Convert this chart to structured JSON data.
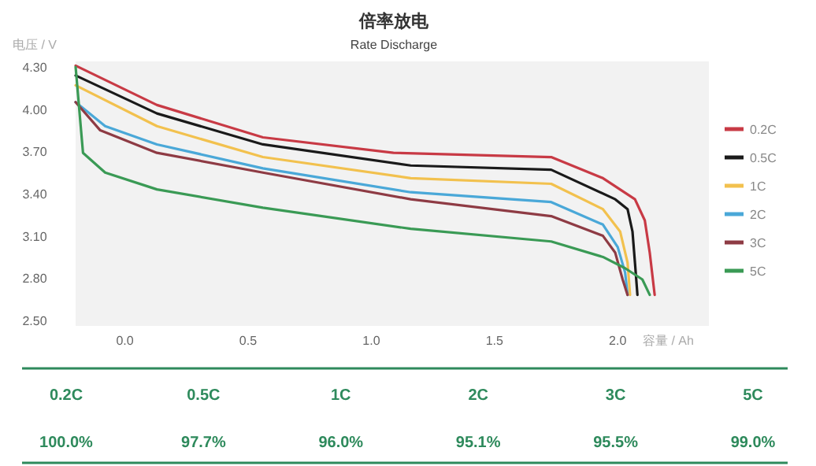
{
  "chart_data": [
    {
      "type": "line",
      "title": "倍率放电",
      "subtitle": "Rate Discharge",
      "xlabel": "容量 / Ah",
      "ylabel": "电压 / V",
      "xlim": [
        -0.2,
        2.37
      ],
      "ylim": [
        2.46,
        4.34
      ],
      "xticks": [
        {
          "value": 0,
          "label": "0.0"
        },
        0.5,
        {
          "value": 1,
          "label": "1.0"
        },
        1.5,
        {
          "value": 2,
          "label": "2.0"
        }
      ],
      "yticks": [
        {
          "value": 2.5,
          "label": "2.50"
        },
        {
          "value": 2.8,
          "label": "2.80"
        },
        {
          "value": 3.1,
          "label": "3.10"
        },
        {
          "value": 3.4,
          "label": "3.40"
        },
        {
          "value": 3.7,
          "label": "3.70"
        },
        {
          "value": 4.0,
          "label": "4.00"
        },
        {
          "value": 4.3,
          "label": "4.30"
        }
      ],
      "grid": false,
      "legend": "right",
      "line_style": "solid",
      "series": [
        {
          "name": "0.2C",
          "color": "#c83a45",
          "x": [
            -0.2,
            0.13,
            0.56,
            1.09,
            1.73,
            1.94,
            2.07,
            2.11,
            2.13,
            2.15
          ],
          "values": [
            4.31,
            4.03,
            3.8,
            3.69,
            3.66,
            3.51,
            3.36,
            3.21,
            2.98,
            2.68
          ]
        },
        {
          "name": "0.5C",
          "color": "#1a1a1a",
          "x": [
            -0.2,
            0.13,
            0.56,
            1.16,
            1.73,
            1.99,
            2.04,
            2.06,
            2.07,
            2.08
          ],
          "values": [
            4.24,
            3.97,
            3.75,
            3.6,
            3.57,
            3.36,
            3.29,
            3.13,
            2.91,
            2.68
          ]
        },
        {
          "name": "1C",
          "color": "#f2c14e",
          "x": [
            -0.2,
            0.13,
            0.56,
            1.16,
            1.73,
            1.94,
            2.01,
            2.04,
            2.05
          ],
          "values": [
            4.17,
            3.88,
            3.66,
            3.51,
            3.47,
            3.29,
            3.13,
            2.91,
            2.68
          ]
        },
        {
          "name": "2C",
          "color": "#4aa8d8",
          "x": [
            -0.2,
            -0.08,
            0.13,
            0.56,
            1.16,
            1.73,
            1.94,
            2.0,
            2.03,
            2.04
          ],
          "values": [
            4.05,
            3.88,
            3.75,
            3.58,
            3.41,
            3.34,
            3.18,
            3.02,
            2.84,
            2.68
          ]
        },
        {
          "name": "3C",
          "color": "#8e3b44",
          "x": [
            -0.2,
            -0.1,
            0.13,
            0.56,
            1.16,
            1.73,
            1.94,
            1.99,
            2.02,
            2.04
          ],
          "values": [
            4.05,
            3.85,
            3.69,
            3.55,
            3.36,
            3.24,
            3.1,
            2.98,
            2.79,
            2.68
          ]
        },
        {
          "name": "5C",
          "color": "#3a9a55",
          "x": [
            -0.2,
            -0.17,
            -0.08,
            0.13,
            0.56,
            1.16,
            1.73,
            1.94,
            2.03,
            2.1,
            2.13
          ],
          "values": [
            4.3,
            3.69,
            3.55,
            3.43,
            3.3,
            3.15,
            3.06,
            2.95,
            2.87,
            2.79,
            2.68
          ]
        }
      ]
    },
    {
      "type": "other",
      "categories": [
        "0.2C",
        "0.5C",
        "1C",
        "2C",
        "3C",
        "5C"
      ],
      "annotations": [
        "100.0%",
        "97.7%",
        "96.0%",
        "95.1%",
        "95.5%",
        "99.0%"
      ],
      "color": "#2e8a5c"
    }
  ]
}
